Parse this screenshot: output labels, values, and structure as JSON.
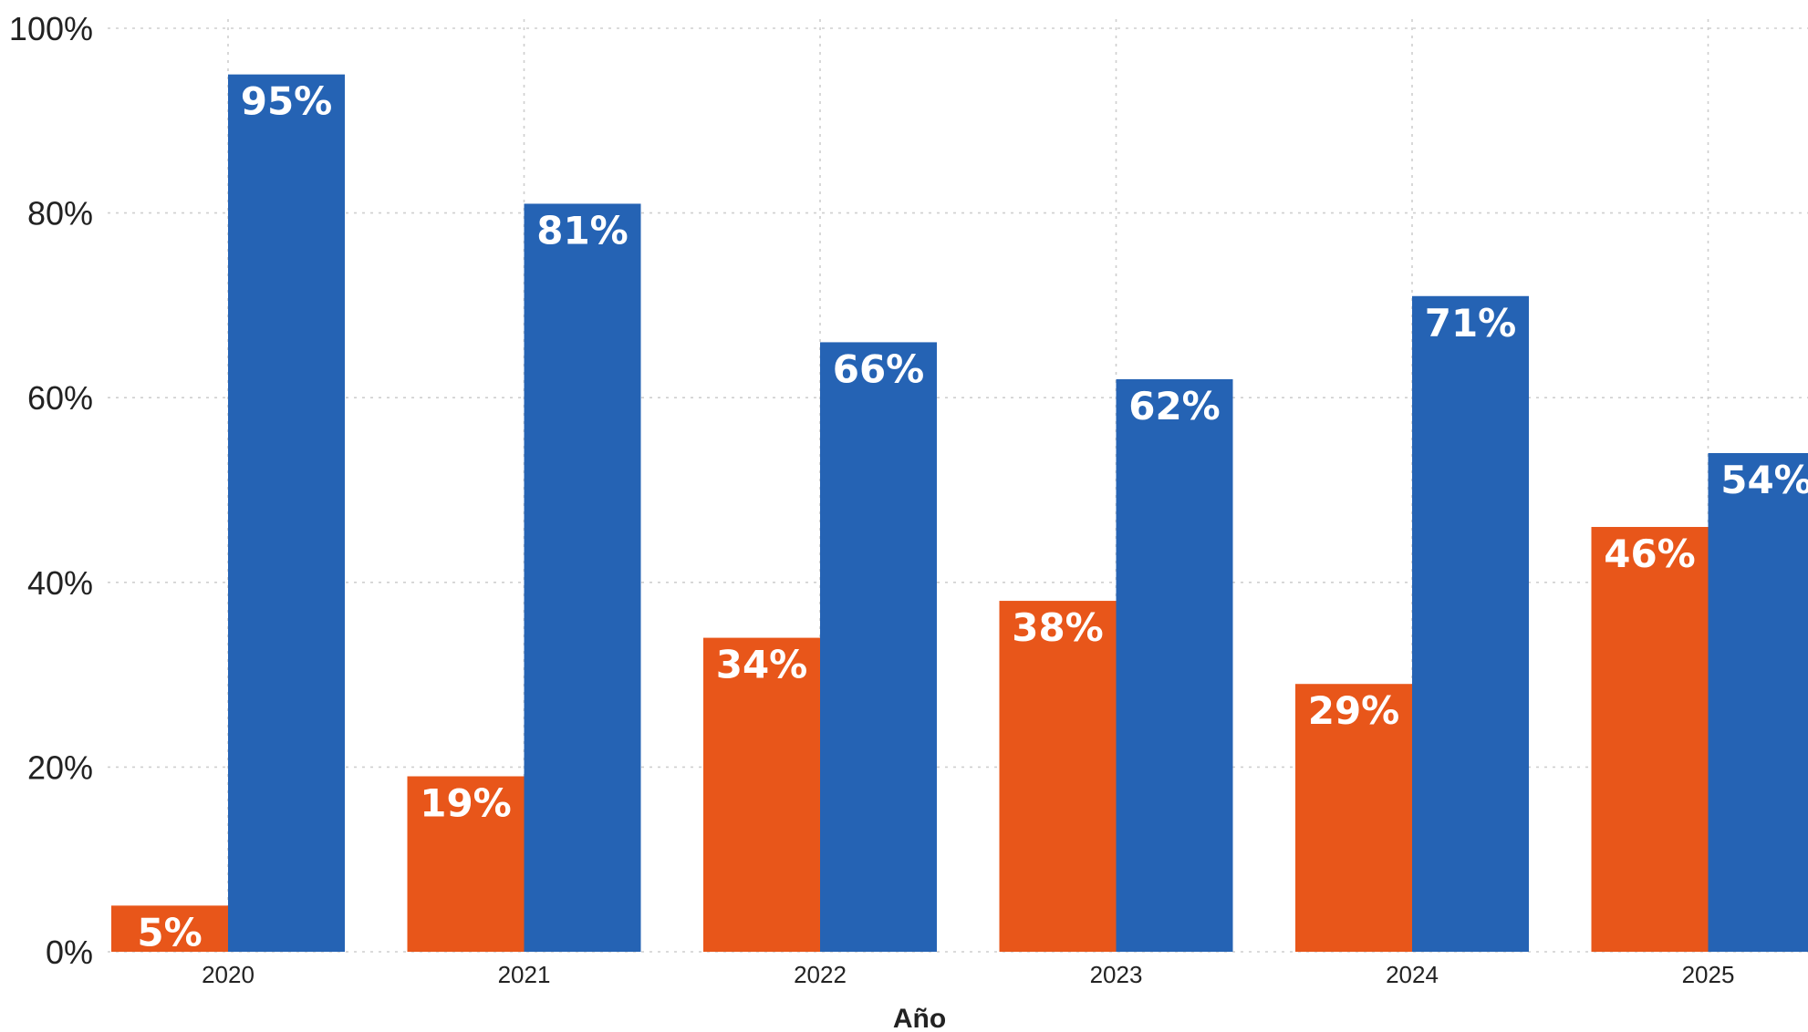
{
  "chart_data": {
    "type": "bar",
    "title": "",
    "xlabel": "Año",
    "ylabel": "",
    "categories": [
      "2020",
      "2021",
      "2022",
      "2023",
      "2024",
      "2025"
    ],
    "series": [
      {
        "color": "#e8561a",
        "values": [
          5,
          19,
          34,
          38,
          29,
          46
        ]
      },
      {
        "color": "#2563b4",
        "values": [
          95,
          81,
          66,
          62,
          71,
          54
        ]
      }
    ],
    "ylim": [
      0,
      100
    ],
    "yticks": [
      0,
      20,
      40,
      60,
      80,
      100
    ],
    "ytick_labels": [
      "0%",
      "20%",
      "40%",
      "60%",
      "80%",
      "100%"
    ],
    "value_suffix": "%",
    "grid": true,
    "legend": "none"
  }
}
